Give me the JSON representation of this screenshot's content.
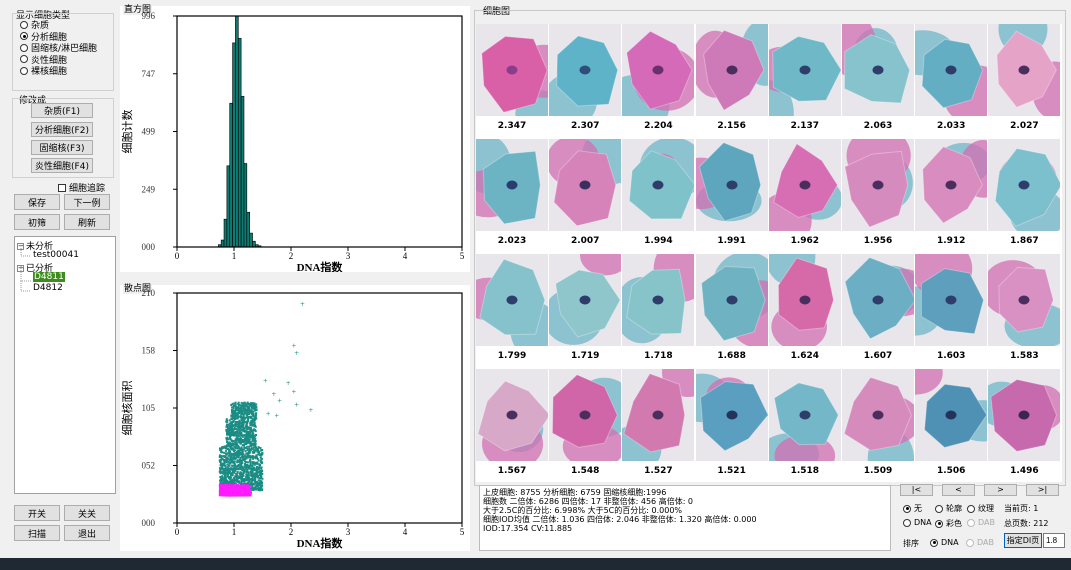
{
  "left": {
    "display_group_title": "显示细胞类型",
    "cell_types": [
      {
        "label": "杂质",
        "selected": false
      },
      {
        "label": "分析细胞",
        "selected": true
      },
      {
        "label": "固缩核/淋巴细胞",
        "selected": false
      },
      {
        "label": "炎性细胞",
        "selected": false
      },
      {
        "label": "裸核细胞",
        "selected": false
      }
    ],
    "modify_group_title": "修改成",
    "modify_buttons": [
      "杂质(F1)",
      "分析细胞(F2)",
      "固缩核(F3)",
      "炎性细胞(F4)"
    ],
    "cell_track_label": "细胞追踪",
    "save_label": "保存",
    "next_label": "下一例",
    "initial_label": "初筛",
    "refresh_label": "刷新",
    "tree": {
      "unanalyzed_label": "未分析",
      "unanalyzed_items": [
        "test00041"
      ],
      "analyzed_label": "已分析",
      "analyzed_items": [
        "D4811",
        "D4812"
      ]
    },
    "open_label": "开关",
    "close_label": "关关",
    "scan_label": "扫描",
    "exit_label": "退出"
  },
  "histogram": {
    "panel_title": "直方图",
    "chart_data": {
      "type": "bar",
      "title": "直方图",
      "xlabel": "DNA指数",
      "ylabel": "细胞计数",
      "xlim": [
        0,
        5
      ],
      "ylim": [
        0,
        996
      ],
      "x_ticks": [
        "0",
        "1",
        "2",
        "3",
        "4",
        "5"
      ],
      "y_ticks": [
        "000",
        "249",
        "499",
        "747",
        "996"
      ],
      "x": [
        0.75,
        0.8,
        0.85,
        0.9,
        0.95,
        1.0,
        1.05,
        1.1,
        1.15,
        1.2,
        1.25,
        1.3,
        1.35,
        1.4,
        1.45
      ],
      "values": [
        10,
        30,
        120,
        350,
        620,
        880,
        996,
        900,
        650,
        360,
        150,
        60,
        25,
        10,
        5
      ]
    }
  },
  "scatter": {
    "panel_title": "散点图",
    "chart_data": {
      "type": "scatter",
      "title": "散点图",
      "xlabel": "DNA指数",
      "ylabel": "细胞核面积",
      "xlim": [
        0,
        5
      ],
      "ylim": [
        0,
        210
      ],
      "x_ticks": [
        "0",
        "1",
        "2",
        "3",
        "4",
        "5"
      ],
      "y_ticks": [
        "000",
        "052",
        "105",
        "158",
        "210"
      ],
      "series": [
        {
          "name": "normal",
          "color": "#1a8c84",
          "x_range": [
            0.75,
            1.5
          ],
          "y_range": [
            30,
            110
          ]
        },
        {
          "name": "small",
          "color": "#ff1aff",
          "x_range": [
            0.75,
            1.3
          ],
          "y_range": [
            25,
            35
          ]
        },
        {
          "name": "outliers",
          "color": "#1a8c84",
          "points": [
            [
              2.2,
              200
            ],
            [
              2.05,
              162
            ],
            [
              2.1,
              155
            ],
            [
              1.95,
              128
            ],
            [
              2.05,
              120
            ],
            [
              2.1,
              108
            ],
            [
              1.55,
              130
            ],
            [
              1.7,
              118
            ],
            [
              1.8,
              112
            ],
            [
              2.35,
              103
            ],
            [
              1.6,
              100
            ],
            [
              1.75,
              98
            ]
          ]
        }
      ]
    }
  },
  "gallery": {
    "panel_title": "细胞图",
    "cells": [
      {
        "value": "2.347",
        "bg": "#d95fa6",
        "nucleus_bg": "#8a3d8c"
      },
      {
        "value": "2.307",
        "bg": "#5fb3c9",
        "nucleus_bg": "#2e4d7a"
      },
      {
        "value": "2.204",
        "bg": "#d46ab8",
        "nucleus_bg": "#6a2f6e"
      },
      {
        "value": "2.156",
        "bg": "#cf7ab8",
        "nucleus_bg": "#4a2f5e"
      },
      {
        "value": "2.137",
        "bg": "#6fb8c8",
        "nucleus_bg": "#2e3d6a"
      },
      {
        "value": "2.063",
        "bg": "#86c3cc",
        "nucleus_bg": "#2e3d6a"
      },
      {
        "value": "2.033",
        "bg": "#63aec2",
        "nucleus_bg": "#2e3d6a"
      },
      {
        "value": "2.027",
        "bg": "#e6a3c8",
        "nucleus_bg": "#4a2f5e"
      },
      {
        "value": "2.023",
        "bg": "#6cb3c4",
        "nucleus_bg": "#2a3e6e"
      },
      {
        "value": "2.007",
        "bg": "#d583b8",
        "nucleus_bg": "#3a2f5e"
      },
      {
        "value": "1.994",
        "bg": "#7fc2c9",
        "nucleus_bg": "#2e3d6a"
      },
      {
        "value": "1.991",
        "bg": "#5ea6bd",
        "nucleus_bg": "#2e3d6a"
      },
      {
        "value": "1.962",
        "bg": "#d76eb4",
        "nucleus_bg": "#4a2f5e"
      },
      {
        "value": "1.956",
        "bg": "#d68bbf",
        "nucleus_bg": "#4a2f5e"
      },
      {
        "value": "1.912",
        "bg": "#d98cbf",
        "nucleus_bg": "#4a2f5e"
      },
      {
        "value": "1.867",
        "bg": "#7cc0cd",
        "nucleus_bg": "#2e3d6a"
      },
      {
        "value": "1.799",
        "bg": "#86c2cc",
        "nucleus_bg": "#2e3d6a"
      },
      {
        "value": "1.719",
        "bg": "#8ec6cb",
        "nucleus_bg": "#2e3d6a"
      },
      {
        "value": "1.718",
        "bg": "#86c4c9",
        "nucleus_bg": "#2e3d6a"
      },
      {
        "value": "1.688",
        "bg": "#6fb3c3",
        "nucleus_bg": "#2e3d6a"
      },
      {
        "value": "1.624",
        "bg": "#d66aa8",
        "nucleus_bg": "#4a2f5e"
      },
      {
        "value": "1.607",
        "bg": "#6caec3",
        "nucleus_bg": "#2e3d6a"
      },
      {
        "value": "1.603",
        "bg": "#5d9fbc",
        "nucleus_bg": "#2e3d6a"
      },
      {
        "value": "1.583",
        "bg": "#d990c3",
        "nucleus_bg": "#4a2f5e"
      },
      {
        "value": "1.567",
        "bg": "#d8a8c9",
        "nucleus_bg": "#4a2f5e"
      },
      {
        "value": "1.548",
        "bg": "#d065a8",
        "nucleus_bg": "#4a2f5e"
      },
      {
        "value": "1.527",
        "bg": "#d27ab0",
        "nucleus_bg": "#4a2f5e"
      },
      {
        "value": "1.521",
        "bg": "#5a9ec0",
        "nucleus_bg": "#23335a"
      },
      {
        "value": "1.518",
        "bg": "#74b7c8",
        "nucleus_bg": "#2e3d6a"
      },
      {
        "value": "1.509",
        "bg": "#d58cbd",
        "nucleus_bg": "#4a2f5e"
      },
      {
        "value": "1.506",
        "bg": "#4f91b5",
        "nucleus_bg": "#23335a"
      },
      {
        "value": "1.496",
        "bg": "#c66aad",
        "nucleus_bg": "#3d2456"
      }
    ]
  },
  "stats": {
    "line1": "上皮细胞: 8755    分析细胞: 6759    固缩核细胞:1996",
    "line2": "细胞数      二倍体: 6286  四倍体: 17   非整倍体: 456   高倍体: 0",
    "line3": "大于2.5C的百分比: 6.998%  大于5C的百分比: 0.000%",
    "line4": "细胞IOD均值      二倍体: 1.036  四倍体: 2.046  非整倍体: 1.320  高倍体: 0.000",
    "line5": "IOD:17.354                CV:11.885"
  },
  "nav": {
    "first": "|<",
    "prev": "<",
    "next": ">",
    "last": ">|",
    "current_page_label": "当前页: 1",
    "total_pages_label": "总页数: 212"
  },
  "options": {
    "outline": [
      {
        "label": "无",
        "selected": true,
        "disabled": false
      },
      {
        "label": "轮廓",
        "selected": false,
        "disabled": false
      },
      {
        "label": "纹理",
        "selected": false,
        "disabled": false
      }
    ],
    "color": [
      {
        "label": "DNA",
        "selected": false,
        "disabled": false
      },
      {
        "label": "彩色",
        "selected": true,
        "disabled": false
      },
      {
        "label": "DAB",
        "selected": false,
        "disabled": true
      }
    ],
    "sort_label": "排序",
    "sort": [
      {
        "label": "DNA",
        "selected": true,
        "disabled": false
      },
      {
        "label": "DAB",
        "selected": false,
        "disabled": true
      }
    ],
    "specify_di_label": "指定DI页",
    "specify_di_value": "1.8"
  }
}
